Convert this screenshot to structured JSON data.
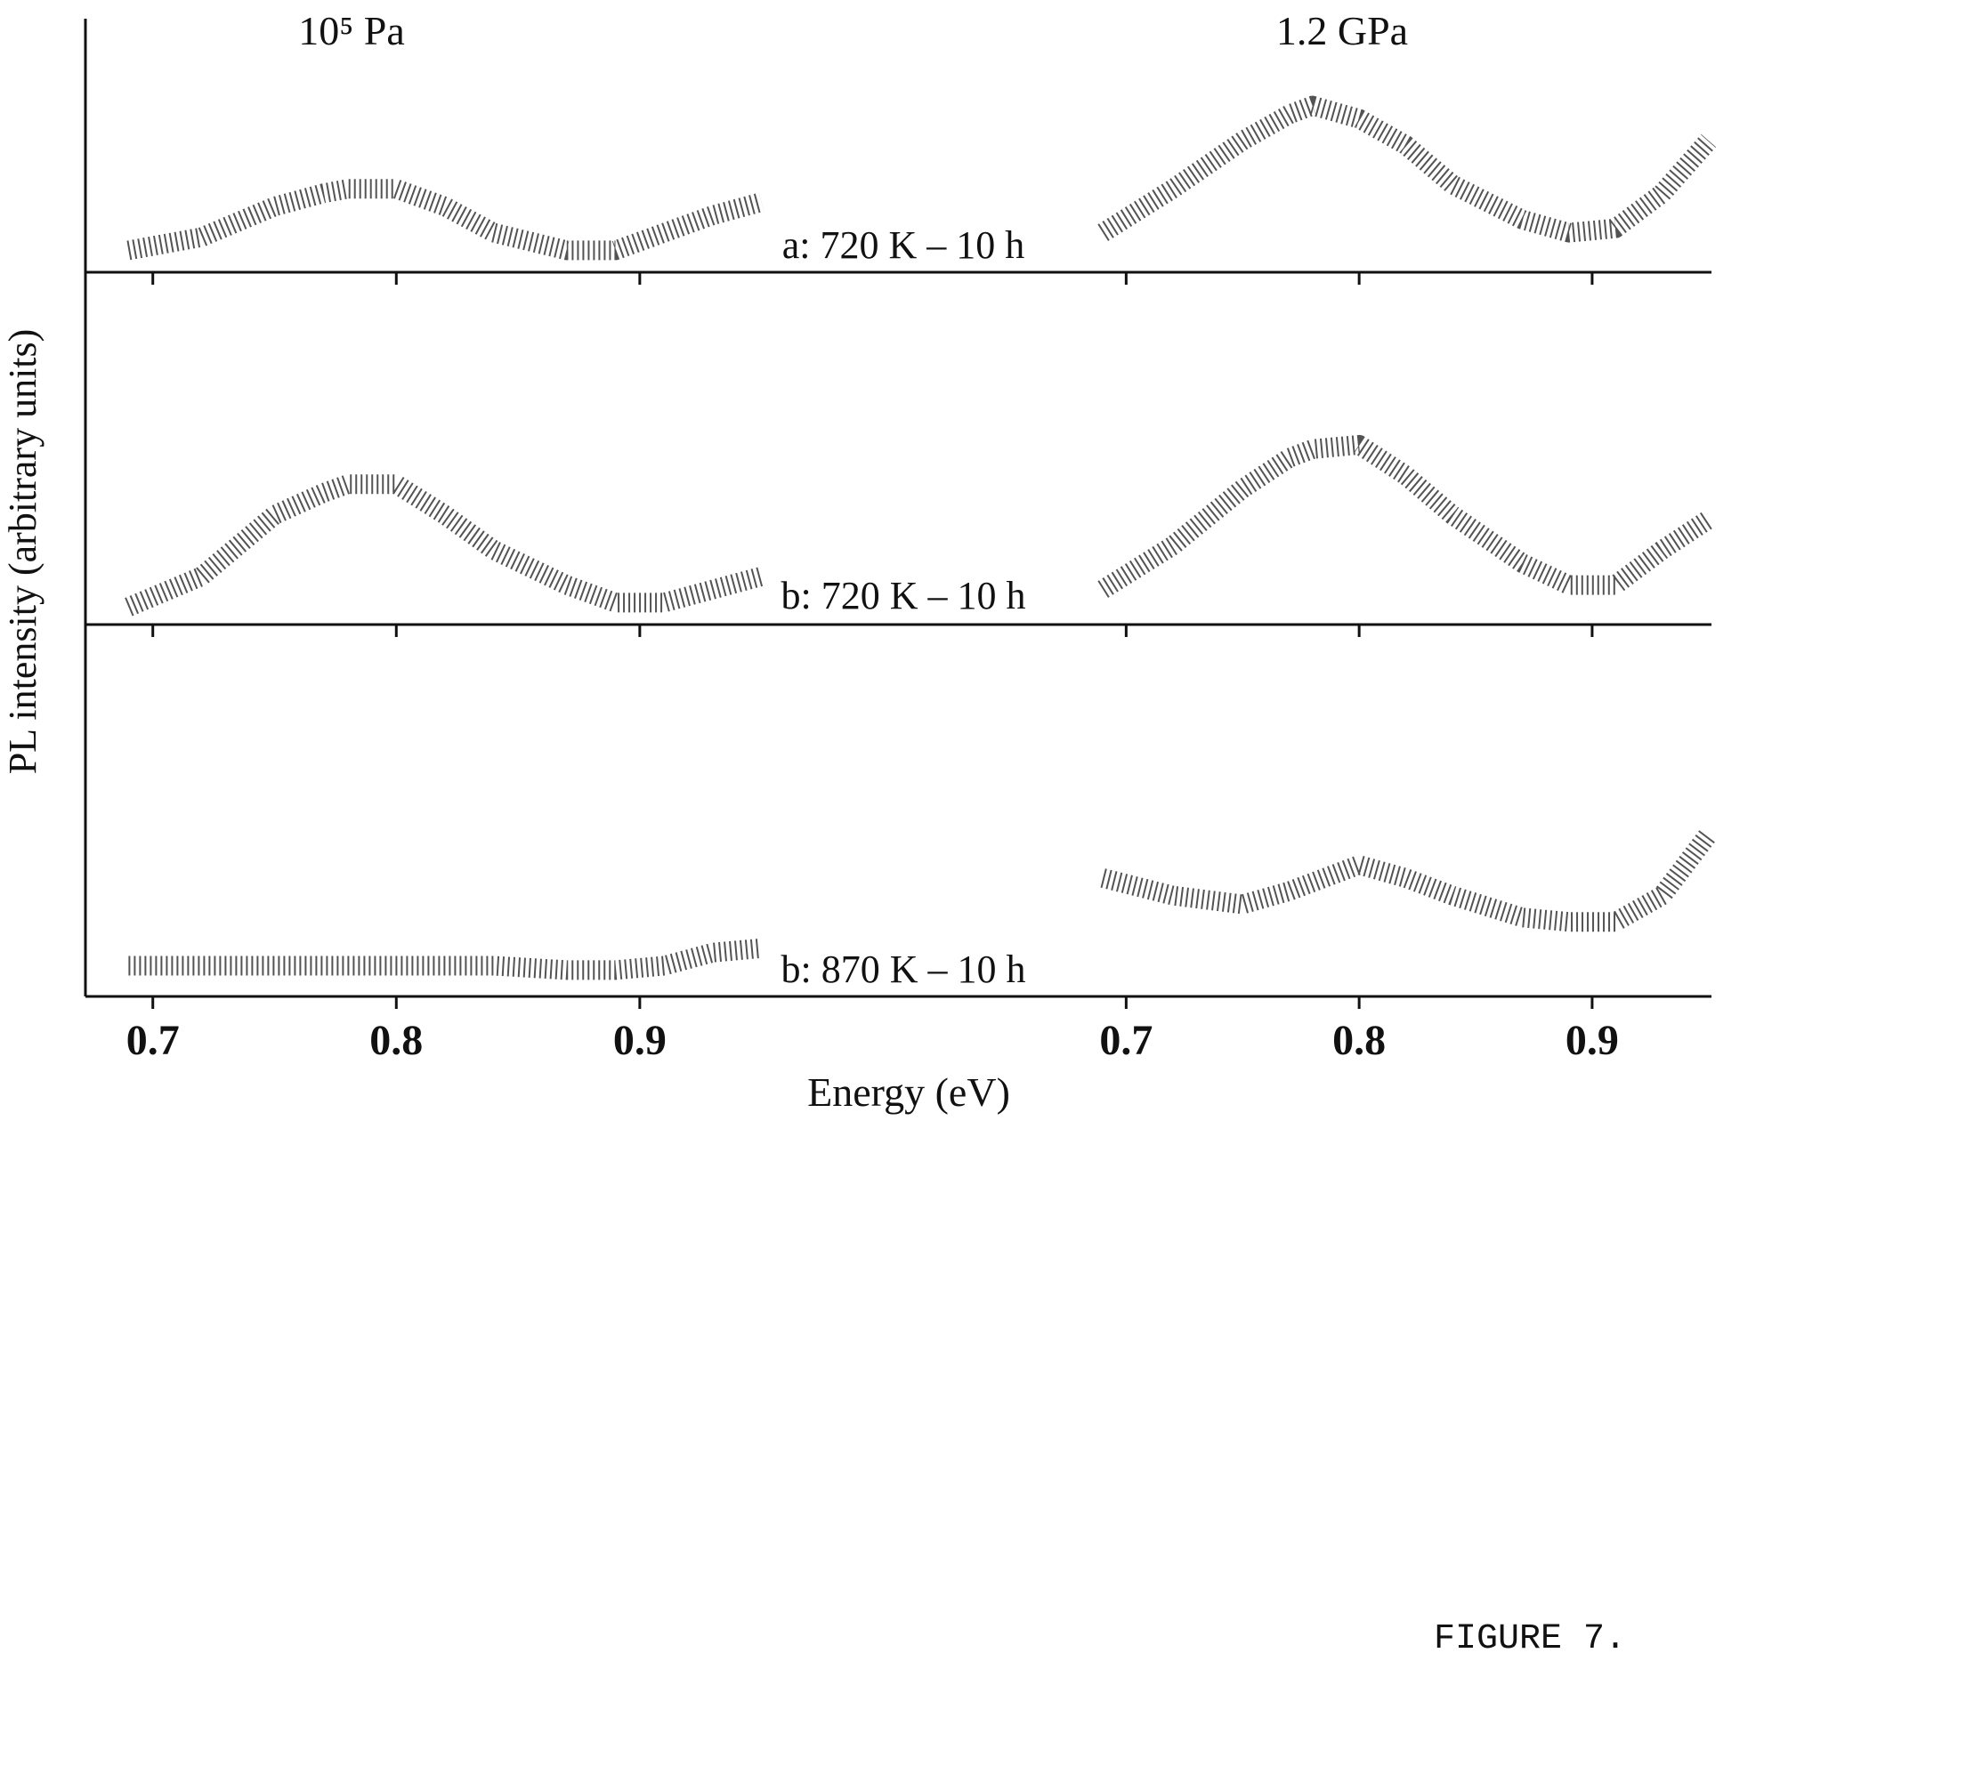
{
  "chart_data": {
    "type": "line",
    "y_label": "PL intensity (arbitrary units)",
    "x_label": "Energy (eV)",
    "color": "#1a1a1a",
    "x": [
      0.69,
      0.72,
      0.75,
      0.77,
      0.78,
      0.8,
      0.82,
      0.84,
      0.87,
      0.89,
      0.91,
      0.93,
      0.95
    ],
    "columns": [
      {
        "title": "10⁵ Pa",
        "xlim": [
          0.68,
          0.96
        ],
        "xticks": [
          0.7,
          0.8,
          0.9
        ]
      },
      {
        "title": "1.2 GPa",
        "xlim": [
          0.68,
          0.96
        ],
        "xticks": [
          0.7,
          0.8,
          0.9
        ]
      }
    ],
    "rows": [
      {
        "label": "a: 720 K – 10 h",
        "ylim": [
          0,
          2.9
        ],
        "values": [
          [
            0.25,
            0.4,
            0.75,
            0.9,
            0.95,
            0.95,
            0.75,
            0.45,
            0.25,
            0.25,
            0.45,
            0.65,
            0.8
          ],
          [
            0.45,
            0.95,
            1.5,
            1.8,
            1.9,
            1.75,
            1.45,
            1.0,
            0.6,
            0.45,
            0.5,
            0.9,
            1.5
          ]
        ]
      },
      {
        "label": "b: 720 K – 10 h",
        "ylim": [
          0,
          4.0
        ],
        "values": [
          [
            0.2,
            0.55,
            1.25,
            1.5,
            1.6,
            1.6,
            1.25,
            0.85,
            0.45,
            0.25,
            0.25,
            0.4,
            0.55
          ],
          [
            0.4,
            0.9,
            1.55,
            1.9,
            2.0,
            2.05,
            1.7,
            1.25,
            0.7,
            0.45,
            0.45,
            0.85,
            1.2
          ]
        ]
      },
      {
        "label": "b: 870 K – 10 h",
        "ylim": [
          0,
          4.2
        ],
        "values": [
          [
            0.35,
            0.35,
            0.35,
            0.35,
            0.35,
            0.35,
            0.35,
            0.35,
            0.3,
            0.3,
            0.35,
            0.5,
            0.55
          ],
          [
            1.35,
            1.15,
            1.05,
            1.2,
            1.3,
            1.5,
            1.35,
            1.15,
            0.9,
            0.85,
            0.85,
            1.15,
            1.85
          ]
        ]
      }
    ]
  },
  "caption": "FIGURE 7."
}
